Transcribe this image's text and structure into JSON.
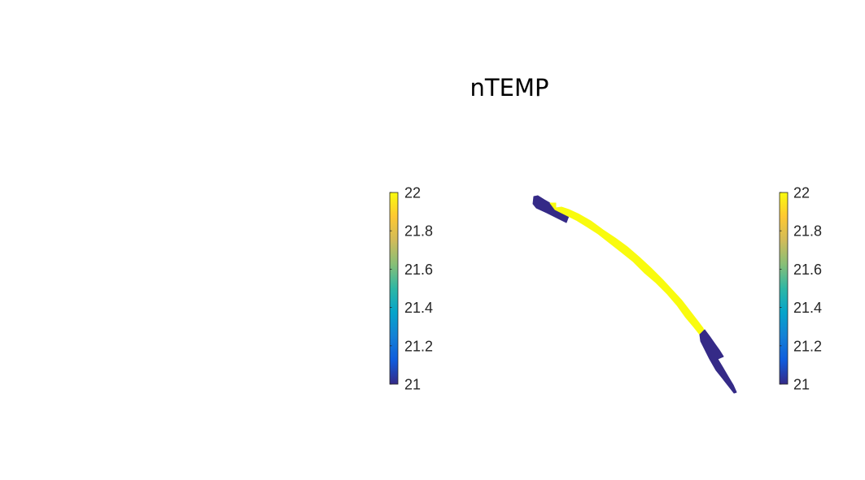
{
  "chart_data": {
    "type": "heatmap",
    "title": "nTEMP",
    "colormap": "parula",
    "colors": {
      "low": "#352A87",
      "high": "#F9FB0E",
      "stops": [
        "#352A87",
        "#0F5CDD",
        "#1481D6",
        "#06A4CA",
        "#2EB7A4",
        "#87BF77",
        "#D1BB59",
        "#FEC832",
        "#F9FB0E"
      ]
    },
    "colorbars": [
      {
        "name": "left",
        "clim": [
          21,
          22
        ],
        "ticks": [
          "21",
          "21.2",
          "21.4",
          "21.6",
          "21.8",
          "22"
        ]
      },
      {
        "name": "right",
        "clim": [
          21,
          22
        ],
        "ticks": [
          "21",
          "21.2",
          "21.4",
          "21.6",
          "21.8",
          "22"
        ]
      }
    ],
    "segments": [
      {
        "name": "northwest-block",
        "value": 21
      },
      {
        "name": "central-arc",
        "value": 22
      },
      {
        "name": "southeast-tail",
        "value": 21
      }
    ]
  }
}
